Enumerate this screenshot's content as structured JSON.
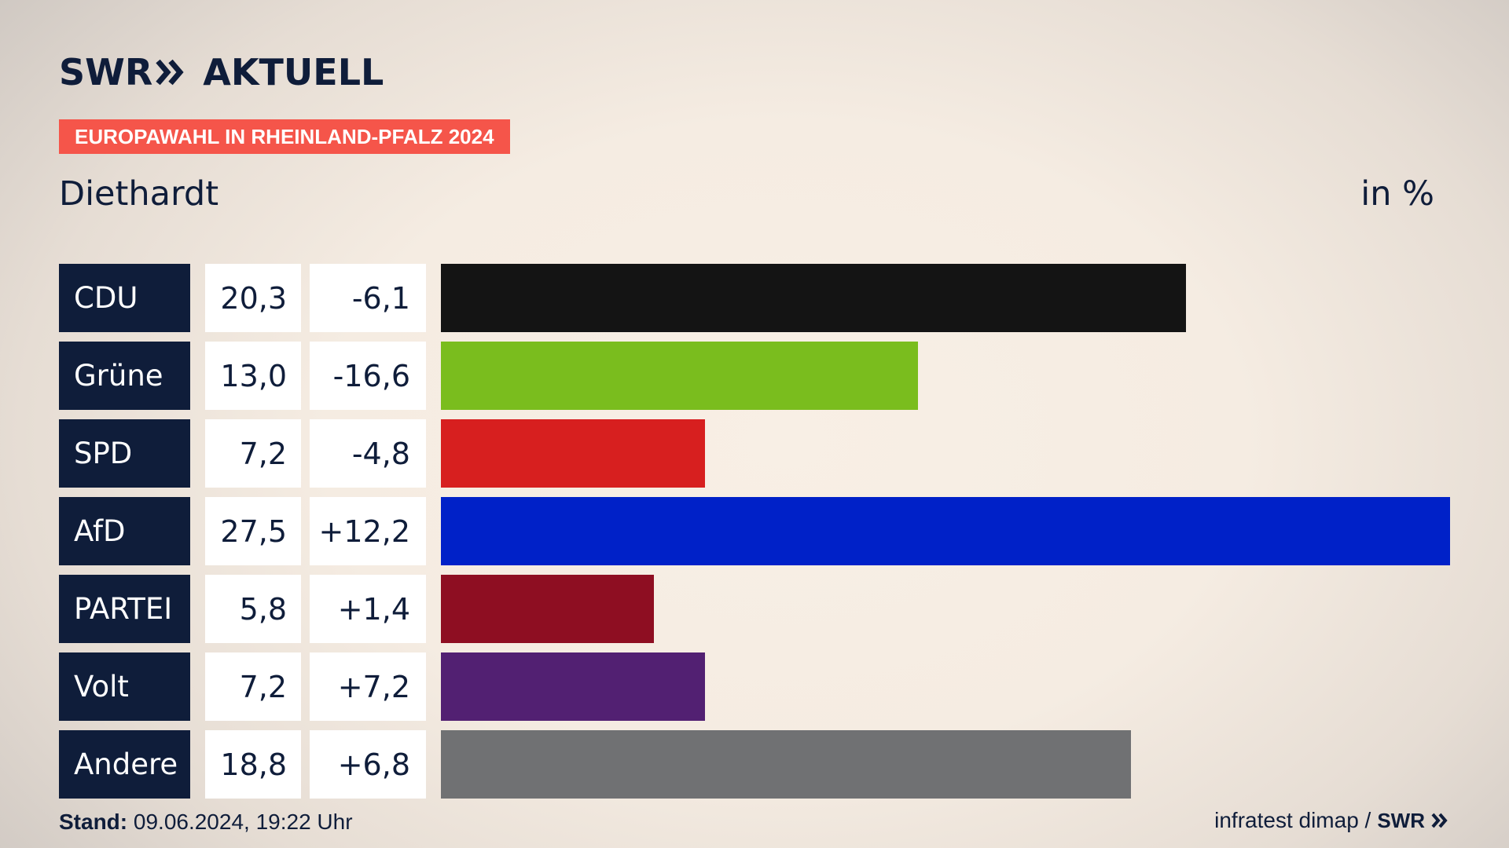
{
  "header": {
    "brand": "SWR",
    "title": "AKTUELL",
    "tag": "EUROPAWAHL IN RHEINLAND-PFALZ 2024",
    "place": "Diethardt",
    "unit": "in %"
  },
  "chart_data": {
    "type": "bar",
    "orientation": "horizontal",
    "title": "Diethardt",
    "unit": "in %",
    "xlim": [
      0,
      27.5
    ],
    "categories": [
      "CDU",
      "Grüne",
      "SPD",
      "AfD",
      "PARTEI",
      "Volt",
      "Andere"
    ],
    "values": [
      20.3,
      13.0,
      7.2,
      27.5,
      5.8,
      7.2,
      18.8
    ],
    "value_labels": [
      "20,3",
      "13,0",
      "7,2",
      "27,5",
      "5,8",
      "7,2",
      "18,8"
    ],
    "diff_labels": [
      "-6,1",
      "-16,6",
      "-4,8",
      "+12,2",
      "+1,4",
      "+7,2",
      "+6,8"
    ],
    "diffs": [
      -6.1,
      -16.6,
      -4.8,
      12.2,
      1.4,
      7.2,
      6.8
    ],
    "colors": [
      "#141414",
      "#7abd1e",
      "#d71f1f",
      "#0021c8",
      "#8e0e22",
      "#522072",
      "#707173"
    ]
  },
  "footer": {
    "stand_label": "Stand:",
    "stand_value": "09.06.2024, 19:22 Uhr",
    "source": "infratest dimap /",
    "source_brand": "SWR"
  },
  "colors": {
    "navy": "#0f1d3a",
    "tag": "#f5554a"
  }
}
